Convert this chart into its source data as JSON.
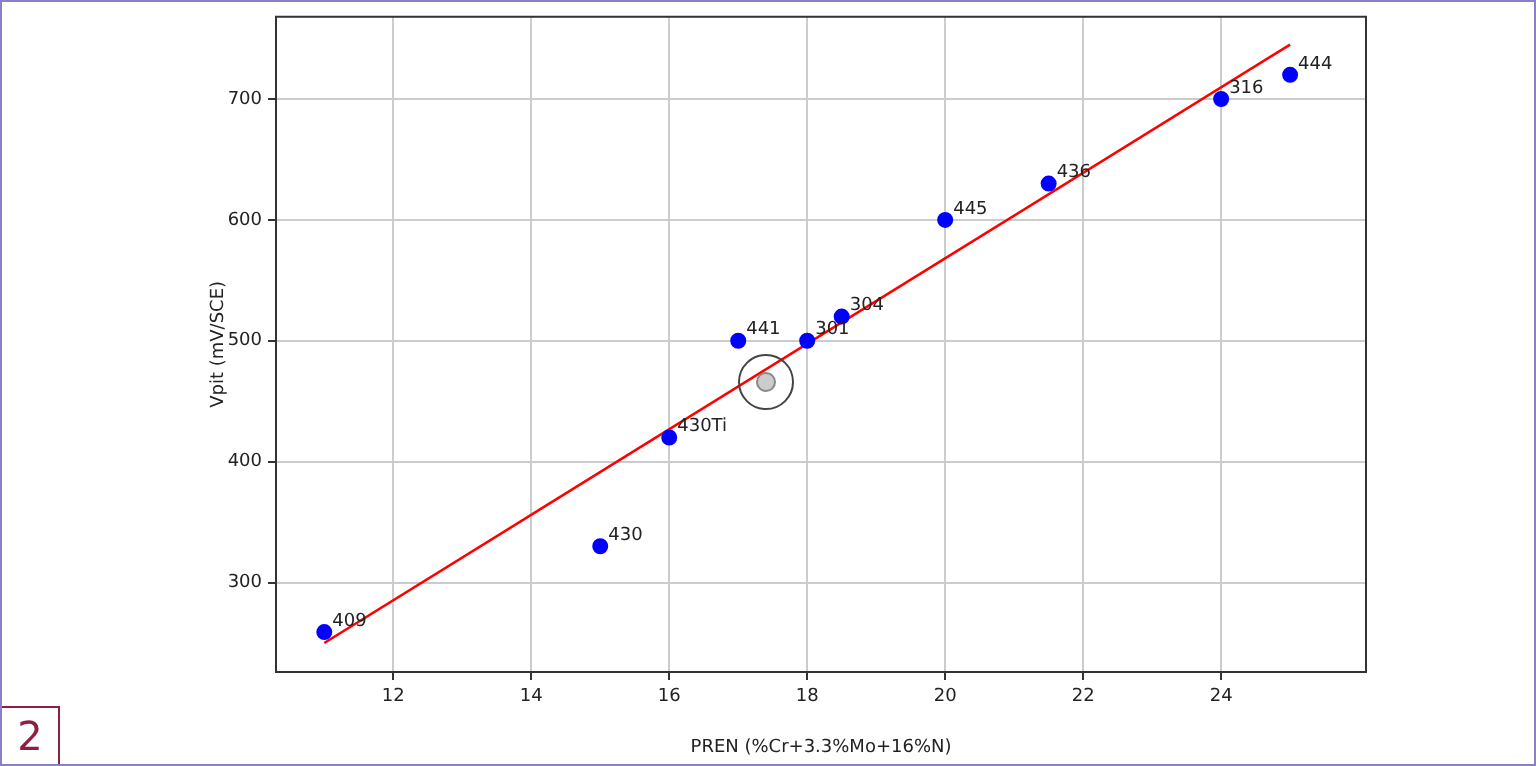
{
  "chart_data": {
    "type": "scatter",
    "xlabel": "PREN (%Cr+3.3%Mo+16%N)",
    "ylabel": "Vpit (mV/SCE)",
    "xlim": [
      10.3,
      26.1
    ],
    "xticks": [
      12,
      14,
      16,
      18,
      20,
      22,
      24
    ],
    "ylim": [
      226,
      768
    ],
    "yticks": [
      300,
      400,
      500,
      600,
      700
    ],
    "grid": true,
    "legend": false,
    "marker": "circle",
    "series": [
      {
        "color": "#0000ff",
        "x": [
          11,
          15,
          16,
          17,
          18,
          18.5,
          20,
          21.5,
          24,
          25
        ],
        "values": [
          259,
          330,
          420,
          500,
          500,
          520,
          600,
          630,
          700,
          720
        ]
      },
      {
        "type": "line",
        "color": "#ff0000",
        "marker": "none",
        "x": [
          11,
          25
        ],
        "values": [
          250,
          745
        ]
      }
    ],
    "annotations": [
      {
        "text": "409",
        "x": 11,
        "y": 259
      },
      {
        "text": "430",
        "x": 15,
        "y": 330
      },
      {
        "text": "430Ti",
        "x": 16,
        "y": 420
      },
      {
        "text": "441",
        "x": 17,
        "y": 500
      },
      {
        "text": "301",
        "x": 18,
        "y": 500
      },
      {
        "text": "304",
        "x": 18.5,
        "y": 520
      },
      {
        "text": "445",
        "x": 20,
        "y": 600
      },
      {
        "text": "436",
        "x": 21.5,
        "y": 630
      },
      {
        "text": "316",
        "x": 24,
        "y": 700
      },
      {
        "text": "444",
        "x": 25,
        "y": 720
      },
      "2"
    ]
  }
}
